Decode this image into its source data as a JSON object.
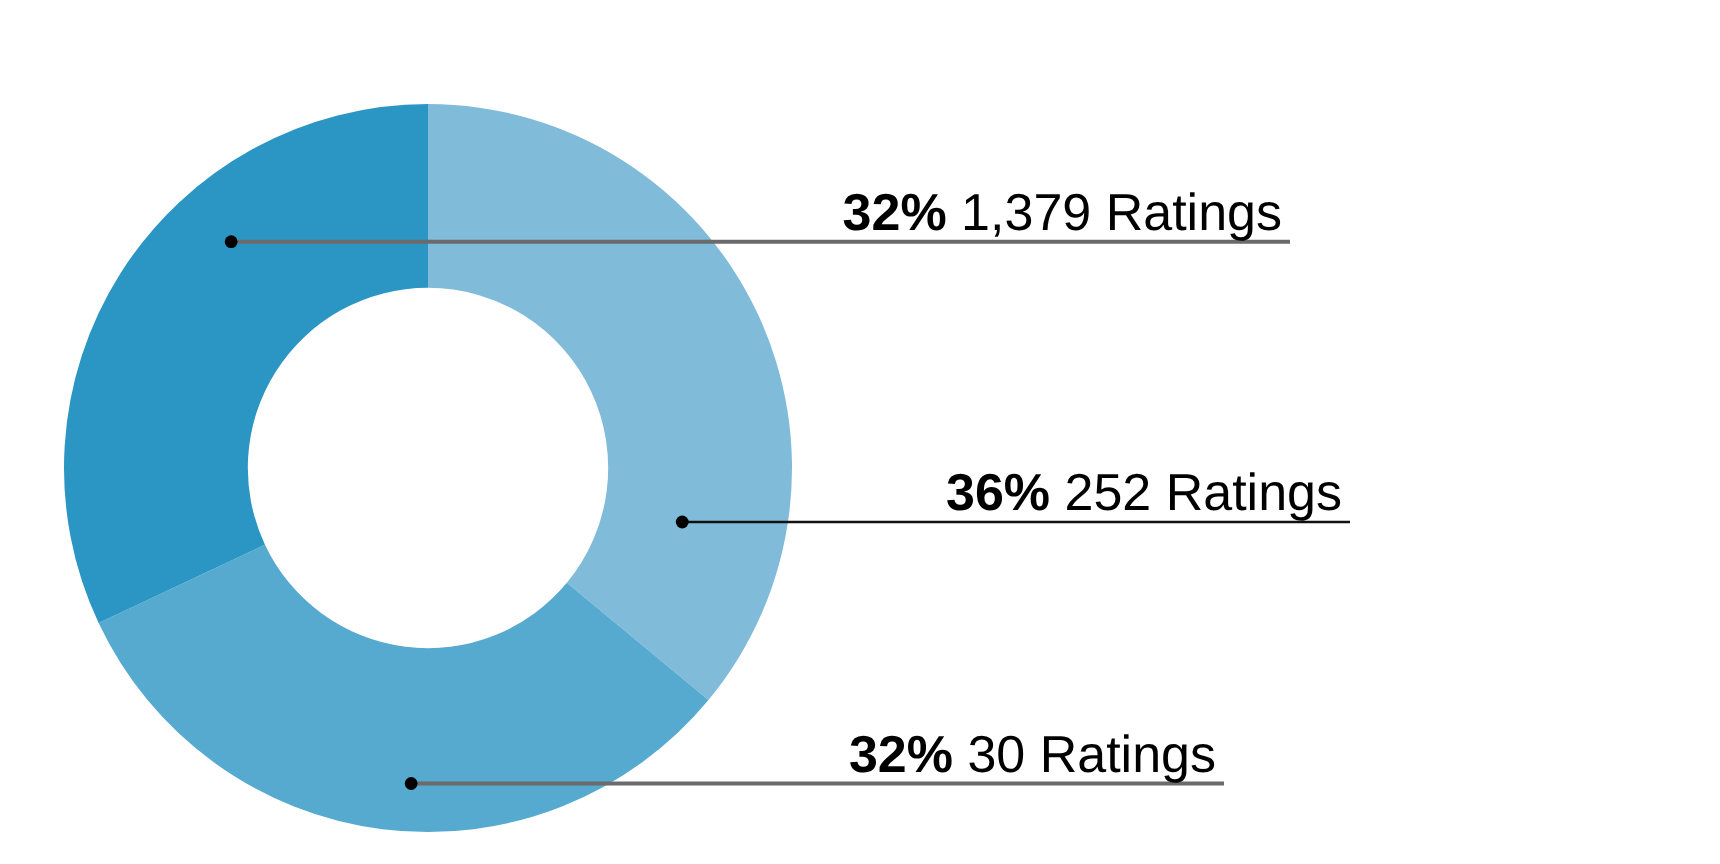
{
  "chart_data": {
    "type": "donut",
    "categories": [
      "252 Ratings",
      "30 Ratings",
      "1,379 Ratings"
    ],
    "values": [
      36,
      32,
      32
    ],
    "value_labels": [
      "36%",
      "32%",
      "32%"
    ],
    "colors": [
      "#80bbd9",
      "#56a9cf",
      "#2b95c3"
    ]
  }
}
